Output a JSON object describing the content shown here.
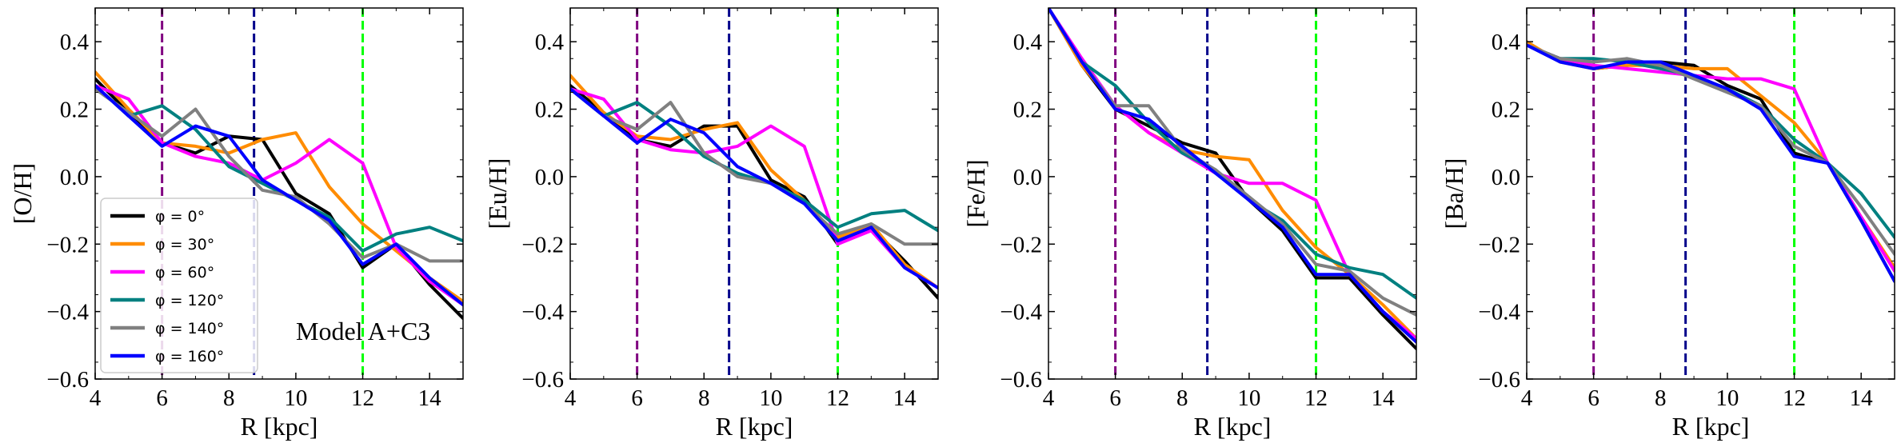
{
  "chart_data": [
    {
      "type": "line",
      "ylabel": "[O/H]",
      "xlabel": "R [kpc]",
      "xlim": [
        4,
        15
      ],
      "ylim": [
        -0.6,
        0.5
      ],
      "x": [
        4,
        5,
        6,
        7,
        8,
        9,
        10,
        11,
        12,
        13,
        14,
        15
      ],
      "annotation": "Model A+C3",
      "series": [
        {
          "name": "φ = 0°",
          "color": "#000000",
          "values": [
            0.29,
            0.19,
            0.1,
            0.07,
            0.12,
            0.11,
            -0.05,
            -0.11,
            -0.27,
            -0.2,
            -0.32,
            -0.42
          ]
        },
        {
          "name": "φ = 30°",
          "color": "#ff8c00",
          "values": [
            0.31,
            0.2,
            0.1,
            0.09,
            0.07,
            0.11,
            0.13,
            -0.03,
            -0.14,
            -0.22,
            -0.3,
            -0.37
          ]
        },
        {
          "name": "φ = 60°",
          "color": "#ff00ff",
          "values": [
            0.27,
            0.23,
            0.1,
            0.06,
            0.04,
            -0.01,
            0.04,
            0.11,
            0.04,
            -0.21,
            -0.31,
            -0.38
          ]
        },
        {
          "name": "φ = 120°",
          "color": "#008080",
          "values": [
            0.27,
            0.18,
            0.21,
            0.14,
            0.03,
            -0.02,
            -0.07,
            -0.12,
            -0.22,
            -0.17,
            -0.15,
            -0.19
          ]
        },
        {
          "name": "φ = 140°",
          "color": "#808080",
          "values": [
            0.26,
            0.19,
            0.12,
            0.2,
            0.06,
            -0.04,
            -0.06,
            -0.14,
            -0.24,
            -0.2,
            -0.25,
            -0.25
          ]
        },
        {
          "name": "φ = 160°",
          "color": "#0000ff",
          "values": [
            0.27,
            0.18,
            0.09,
            0.15,
            0.12,
            -0.01,
            -0.07,
            -0.13,
            -0.26,
            -0.2,
            -0.3,
            -0.38
          ]
        }
      ],
      "vlines": [
        {
          "x": 6.0,
          "color": "#800080"
        },
        {
          "x": 8.75,
          "color": "#00008b"
        },
        {
          "x": 12.0,
          "color": "#00ff00"
        }
      ]
    },
    {
      "type": "line",
      "ylabel": "[Eu/H]",
      "xlabel": "R [kpc]",
      "xlim": [
        4,
        15
      ],
      "ylim": [
        -0.6,
        0.5
      ],
      "x": [
        4,
        5,
        6,
        7,
        8,
        9,
        10,
        11,
        12,
        13,
        14,
        15
      ],
      "series": [
        {
          "name": "φ = 0°",
          "color": "#000000",
          "values": [
            0.27,
            0.19,
            0.11,
            0.09,
            0.15,
            0.15,
            -0.01,
            -0.06,
            -0.2,
            -0.15,
            -0.25,
            -0.36
          ]
        },
        {
          "name": "φ = 30°",
          "color": "#ff8c00",
          "values": [
            0.3,
            0.19,
            0.12,
            0.11,
            0.14,
            0.16,
            0.02,
            -0.07,
            -0.18,
            -0.14,
            -0.26,
            -0.33
          ]
        },
        {
          "name": "φ = 60°",
          "color": "#ff00ff",
          "values": [
            0.26,
            0.23,
            0.11,
            0.08,
            0.07,
            0.09,
            0.15,
            0.09,
            -0.2,
            -0.16,
            -0.27,
            -0.33
          ]
        },
        {
          "name": "φ = 120°",
          "color": "#008080",
          "values": [
            0.26,
            0.18,
            0.22,
            0.15,
            0.06,
            0.01,
            -0.02,
            -0.07,
            -0.15,
            -0.11,
            -0.1,
            -0.16
          ]
        },
        {
          "name": "φ = 140°",
          "color": "#808080",
          "values": [
            0.26,
            0.18,
            0.14,
            0.22,
            0.07,
            0.0,
            -0.02,
            -0.08,
            -0.17,
            -0.14,
            -0.2,
            -0.2
          ]
        },
        {
          "name": "φ = 160°",
          "color": "#0000ff",
          "values": [
            0.26,
            0.18,
            0.1,
            0.17,
            0.13,
            0.03,
            -0.02,
            -0.08,
            -0.19,
            -0.15,
            -0.27,
            -0.33
          ]
        }
      ],
      "vlines": [
        {
          "x": 6.0,
          "color": "#800080"
        },
        {
          "x": 8.75,
          "color": "#00008b"
        },
        {
          "x": 12.0,
          "color": "#00ff00"
        }
      ]
    },
    {
      "type": "line",
      "ylabel": "[Fe/H]",
      "xlabel": "R [kpc]",
      "xlim": [
        4,
        15
      ],
      "ylim": [
        -0.6,
        0.5
      ],
      "x": [
        4,
        5,
        6,
        7,
        8,
        9,
        10,
        11,
        12,
        13,
        14,
        15
      ],
      "series": [
        {
          "name": "φ = 0°",
          "color": "#000000",
          "values": [
            0.5,
            0.33,
            0.2,
            0.15,
            0.1,
            0.07,
            -0.07,
            -0.16,
            -0.3,
            -0.3,
            -0.41,
            -0.51
          ]
        },
        {
          "name": "φ = 30°",
          "color": "#ff8c00",
          "values": [
            0.5,
            0.33,
            0.21,
            0.13,
            0.08,
            0.06,
            0.05,
            -0.1,
            -0.21,
            -0.29,
            -0.38,
            -0.48
          ]
        },
        {
          "name": "φ = 60°",
          "color": "#ff00ff",
          "values": [
            0.5,
            0.35,
            0.21,
            0.13,
            0.07,
            0.01,
            -0.02,
            -0.02,
            -0.07,
            -0.29,
            -0.4,
            -0.48
          ]
        },
        {
          "name": "φ = 120°",
          "color": "#008080",
          "values": [
            0.5,
            0.34,
            0.27,
            0.16,
            0.07,
            0.02,
            -0.07,
            -0.13,
            -0.23,
            -0.27,
            -0.29,
            -0.36
          ]
        },
        {
          "name": "φ = 140°",
          "color": "#808080",
          "values": [
            0.5,
            0.34,
            0.21,
            0.21,
            0.08,
            0.02,
            -0.06,
            -0.14,
            -0.26,
            -0.28,
            -0.36,
            -0.41
          ]
        },
        {
          "name": "φ = 160°",
          "color": "#0000ff",
          "values": [
            0.5,
            0.34,
            0.2,
            0.17,
            0.09,
            0.01,
            -0.07,
            -0.15,
            -0.29,
            -0.29,
            -0.4,
            -0.49
          ]
        }
      ],
      "vlines": [
        {
          "x": 6.0,
          "color": "#800080"
        },
        {
          "x": 8.75,
          "color": "#00008b"
        },
        {
          "x": 12.0,
          "color": "#00ff00"
        }
      ]
    },
    {
      "type": "line",
      "ylabel": "[Ba/H]",
      "xlabel": "R [kpc]",
      "xlim": [
        4,
        15
      ],
      "ylim": [
        -0.6,
        0.5
      ],
      "x": [
        4,
        5,
        6,
        7,
        8,
        9,
        10,
        11,
        12,
        13,
        14,
        15
      ],
      "series": [
        {
          "name": "φ = 0°",
          "color": "#000000",
          "values": [
            0.39,
            0.35,
            0.32,
            0.33,
            0.34,
            0.33,
            0.27,
            0.23,
            0.07,
            0.04,
            -0.13,
            -0.31
          ]
        },
        {
          "name": "φ = 30°",
          "color": "#ff8c00",
          "values": [
            0.4,
            0.34,
            0.32,
            0.33,
            0.33,
            0.32,
            0.32,
            0.24,
            0.16,
            0.04,
            -0.12,
            -0.27
          ]
        },
        {
          "name": "φ = 60°",
          "color": "#ff00ff",
          "values": [
            0.39,
            0.35,
            0.33,
            0.32,
            0.31,
            0.3,
            0.29,
            0.29,
            0.26,
            0.04,
            -0.12,
            -0.28
          ]
        },
        {
          "name": "φ = 120°",
          "color": "#008080",
          "values": [
            0.39,
            0.35,
            0.35,
            0.34,
            0.32,
            0.3,
            0.26,
            0.21,
            0.11,
            0.04,
            -0.05,
            -0.18
          ]
        },
        {
          "name": "φ = 140°",
          "color": "#808080",
          "values": [
            0.39,
            0.35,
            0.34,
            0.35,
            0.33,
            0.29,
            0.25,
            0.21,
            0.09,
            0.04,
            -0.09,
            -0.23
          ]
        },
        {
          "name": "φ = 160°",
          "color": "#0000ff",
          "values": [
            0.39,
            0.34,
            0.32,
            0.34,
            0.34,
            0.3,
            0.26,
            0.2,
            0.06,
            0.04,
            -0.13,
            -0.31
          ]
        }
      ],
      "vlines": [
        {
          "x": 6.0,
          "color": "#800080"
        },
        {
          "x": 8.75,
          "color": "#00008b"
        },
        {
          "x": 12.0,
          "color": "#00ff00"
        }
      ]
    }
  ],
  "legend": {
    "panel": 0,
    "location": "lower left",
    "entries": [
      "$\\phi = 0^{\\circ}$",
      "$\\phi = 30^{\\circ}$",
      "$\\phi = 60^{\\circ}$",
      "$\\phi = 120^{\\circ}$",
      "$\\phi = 140^{\\circ}$",
      "$\\phi = 160^{\\circ}$"
    ],
    "display": [
      "φ = 0°",
      "φ = 30°",
      "φ = 60°",
      "φ = 120°",
      "φ = 140°",
      "φ = 160°"
    ]
  },
  "yticks": [
    -0.6,
    -0.4,
    -0.2,
    0.0,
    0.2,
    0.4
  ],
  "xticks": [
    4,
    6,
    8,
    10,
    12,
    14
  ],
  "ytick_labels": [
    "−0.6",
    "−0.4",
    "−0.2",
    "0.0",
    "0.2",
    "0.4"
  ],
  "xtick_labels": [
    "4",
    "6",
    "8",
    "10",
    "12",
    "14"
  ]
}
